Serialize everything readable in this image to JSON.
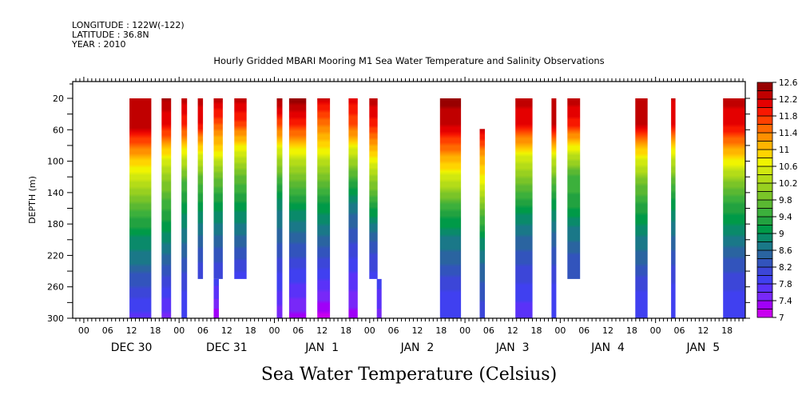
{
  "header": {
    "longitude": "LONGITUDE : 122W(-122)",
    "latitude": "LATITUDE : 36.8N",
    "year": "YEAR : 2010"
  },
  "chart_data": {
    "type": "heatmap",
    "title": "Hourly Gridded MBARI Mooring M1 Sea Water Temperature and Salinity Observations",
    "xlabel": "Sea Water Temperature (Celsius)",
    "ylabel": "DEPTH (m)",
    "x_units": "hours since DEC 30 00:00",
    "xlim": [
      -2.8,
      166.6
    ],
    "ylim": [
      300,
      0
    ],
    "y_ticks": [
      20,
      60,
      100,
      140,
      180,
      220,
      260,
      300
    ],
    "x_hour_ticks": [
      {
        "hour": 0,
        "label": "00"
      },
      {
        "hour": 6,
        "label": "06"
      },
      {
        "hour": 12,
        "label": "12"
      },
      {
        "hour": 18,
        "label": "18"
      },
      {
        "hour": 24,
        "label": "00"
      },
      {
        "hour": 30,
        "label": "06"
      },
      {
        "hour": 36,
        "label": "12"
      },
      {
        "hour": 42,
        "label": "18"
      },
      {
        "hour": 48,
        "label": "00"
      },
      {
        "hour": 54,
        "label": "06"
      },
      {
        "hour": 60,
        "label": "12"
      },
      {
        "hour": 66,
        "label": "18"
      },
      {
        "hour": 72,
        "label": "00"
      },
      {
        "hour": 78,
        "label": "06"
      },
      {
        "hour": 84,
        "label": "12"
      },
      {
        "hour": 90,
        "label": "18"
      },
      {
        "hour": 96,
        "label": "00"
      },
      {
        "hour": 102,
        "label": "06"
      },
      {
        "hour": 108,
        "label": "12"
      },
      {
        "hour": 114,
        "label": "18"
      },
      {
        "hour": 120,
        "label": "00"
      },
      {
        "hour": 126,
        "label": "06"
      },
      {
        "hour": 132,
        "label": "12"
      },
      {
        "hour": 138,
        "label": "18"
      },
      {
        "hour": 144,
        "label": "00"
      },
      {
        "hour": 150,
        "label": "06"
      },
      {
        "hour": 156,
        "label": "12"
      },
      {
        "hour": 162,
        "label": "18"
      }
    ],
    "day_labels": [
      {
        "hour": 12,
        "label": "DEC 30"
      },
      {
        "hour": 36,
        "label": "DEC 31"
      },
      {
        "hour": 60,
        "label": "JAN  1"
      },
      {
        "hour": 84,
        "label": "JAN  2"
      },
      {
        "hour": 108,
        "label": "JAN  3"
      },
      {
        "hour": 132,
        "label": "JAN  4"
      },
      {
        "hour": 156,
        "label": "JAN  5"
      }
    ],
    "colorbar": {
      "levels": [
        7,
        7.2,
        7.4,
        7.6,
        7.8,
        8,
        8.2,
        8.4,
        8.6,
        8.8,
        9,
        9.2,
        9.4,
        9.6,
        9.8,
        10,
        10.2,
        10.4,
        10.6,
        10.8,
        11,
        11.2,
        11.4,
        11.6,
        11.8,
        12,
        12.2,
        12.4,
        12.6
      ],
      "labels": [
        "12.6",
        "12.2",
        "11.8",
        "11.4",
        "11",
        "10.6",
        "10.2",
        "9.8",
        "9.4",
        "9",
        "8.6",
        "8.2",
        "7.8",
        "7.4",
        "7"
      ],
      "colors": [
        "#c800f0",
        "#a000f8",
        "#7828f8",
        "#5a32f8",
        "#4040f0",
        "#3c46d8",
        "#3254bc",
        "#2a64a0",
        "#1a7888",
        "#0a8a6a",
        "#009a48",
        "#22a240",
        "#3cb03c",
        "#5ab832",
        "#7ac428",
        "#98d020",
        "#b4dc18",
        "#d0e810",
        "#f0f400",
        "#ffd400",
        "#ffb400",
        "#ff9000",
        "#ff6a00",
        "#ff4000",
        "#f81800",
        "#e40000",
        "#c00000",
        "#980000"
      ]
    },
    "series": [
      {
        "name": "obs-1",
        "t_start": 11.5,
        "t_end": 17,
        "depth_top": 20,
        "depth_bottom": 300,
        "profile": [
          12.3,
          12.3,
          11.2,
          10.4,
          9.6,
          9.0,
          8.6,
          8.1,
          7.7
        ]
      },
      {
        "name": "obs-2",
        "t_start": 19.6,
        "t_end": 22,
        "depth_top": 20,
        "depth_bottom": 300,
        "profile": [
          12.4,
          12.0,
          10.8,
          10.0,
          9.4,
          8.9,
          8.4,
          7.9,
          7.5
        ]
      },
      {
        "name": "obs-3",
        "t_start": 24.6,
        "t_end": 26,
        "depth_top": 20,
        "depth_bottom": 300,
        "profile": [
          12.3,
          11.8,
          10.6,
          9.6,
          9.1,
          8.7,
          8.3,
          8.0,
          7.8
        ]
      },
      {
        "name": "obs-4",
        "t_start": 28.7,
        "t_end": 30,
        "depth_top": 20,
        "depth_bottom": 250,
        "profile": [
          12.3,
          12.0,
          10.8,
          9.8,
          9.2,
          8.7,
          8.3,
          8.0
        ]
      },
      {
        "name": "obs-5a",
        "t_start": 32.7,
        "t_end": 35,
        "depth_top": 20,
        "depth_bottom": 250,
        "profile": [
          12.3,
          11.6,
          10.8,
          9.9,
          9.2,
          8.7,
          8.3,
          8.0
        ]
      },
      {
        "name": "obs-5b",
        "t_start": 32.7,
        "t_end": 34,
        "depth_top": 250,
        "depth_bottom": 300,
        "profile": [
          7.9,
          7.6,
          7.2
        ]
      },
      {
        "name": "obs-6",
        "t_start": 37.9,
        "t_end": 41,
        "depth_top": 20,
        "depth_bottom": 250,
        "profile": [
          12.3,
          11.7,
          10.6,
          9.8,
          9.2,
          8.7,
          8.3,
          7.9
        ]
      },
      {
        "name": "obs-7",
        "t_start": 48.6,
        "t_end": 50,
        "depth_top": 20,
        "depth_bottom": 300,
        "profile": [
          12.5,
          11.6,
          10.4,
          9.5,
          8.8,
          8.5,
          8.1,
          7.8,
          7.4
        ]
      },
      {
        "name": "obs-8",
        "t_start": 51.7,
        "t_end": 56,
        "depth_top": 20,
        "depth_bottom": 300,
        "profile": [
          12.5,
          11.8,
          10.6,
          9.8,
          9.0,
          8.5,
          8.1,
          7.7,
          7.3
        ]
      },
      {
        "name": "obs-9",
        "t_start": 58.8,
        "t_end": 62,
        "depth_top": 20,
        "depth_bottom": 300,
        "profile": [
          12.2,
          11.4,
          10.6,
          9.8,
          9.1,
          8.6,
          8.1,
          7.6,
          7.1
        ]
      },
      {
        "name": "obs-10",
        "t_start": 66.7,
        "t_end": 69,
        "depth_top": 20,
        "depth_bottom": 300,
        "profile": [
          12.1,
          11.6,
          10.4,
          9.4,
          8.7,
          8.3,
          7.9,
          7.6,
          7.3
        ]
      },
      {
        "name": "obs-11a",
        "t_start": 71.9,
        "t_end": 74,
        "depth_top": 20,
        "depth_bottom": 250,
        "profile": [
          12.3,
          11.9,
          11.0,
          10.2,
          9.4,
          8.7,
          8.2,
          7.9
        ]
      },
      {
        "name": "obs-11b",
        "t_start": 73.8,
        "t_end": 75,
        "depth_top": 250,
        "depth_bottom": 300,
        "profile": [
          7.9,
          7.7,
          7.5
        ]
      },
      {
        "name": "obs-12",
        "t_start": 89.7,
        "t_end": 95,
        "depth_top": 20,
        "depth_bottom": 300,
        "profile": [
          12.5,
          12.2,
          11.3,
          10.4,
          9.4,
          8.8,
          8.4,
          8.0,
          7.9
        ]
      },
      {
        "name": "obs-13",
        "t_start": 99.7,
        "t_end": 101,
        "depth_top": 59,
        "depth_bottom": 300,
        "profile": [
          12.2,
          11.2,
          10.6,
          9.8,
          9.0,
          8.6,
          8.3,
          8.0
        ]
      },
      {
        "name": "obs-14",
        "t_start": 108.7,
        "t_end": 113,
        "depth_top": 20,
        "depth_bottom": 300,
        "profile": [
          12.3,
          12.0,
          10.7,
          9.9,
          9.1,
          8.6,
          8.2,
          7.9,
          7.6
        ]
      },
      {
        "name": "obs-15",
        "t_start": 117.8,
        "t_end": 119,
        "depth_top": 20,
        "depth_bottom": 300,
        "profile": [
          12.3,
          12.2,
          10.6,
          9.7,
          9.0,
          8.5,
          8.2,
          7.9,
          7.8
        ]
      },
      {
        "name": "obs-16",
        "t_start": 121.8,
        "t_end": 125,
        "depth_top": 20,
        "depth_bottom": 250,
        "profile": [
          12.3,
          11.9,
          10.6,
          9.6,
          9.3,
          8.8,
          8.4,
          8.2
        ]
      },
      {
        "name": "obs-17",
        "t_start": 138.9,
        "t_end": 142,
        "depth_top": 20,
        "depth_bottom": 300,
        "profile": [
          12.3,
          12.2,
          10.8,
          9.9,
          9.3,
          8.8,
          8.4,
          8.0,
          7.9
        ]
      },
      {
        "name": "obs-18",
        "t_start": 147.9,
        "t_end": 149,
        "depth_top": 20,
        "depth_bottom": 300,
        "profile": [
          12.2,
          12.0,
          10.6,
          9.7,
          9.0,
          8.6,
          8.2,
          7.9,
          7.8
        ]
      },
      {
        "name": "obs-19",
        "t_start": 161.0,
        "t_end": 166.6,
        "depth_top": 20,
        "depth_bottom": 300,
        "profile": [
          12.3,
          12.0,
          11.0,
          10.0,
          9.3,
          8.8,
          8.3,
          8.0,
          7.9
        ]
      }
    ]
  }
}
